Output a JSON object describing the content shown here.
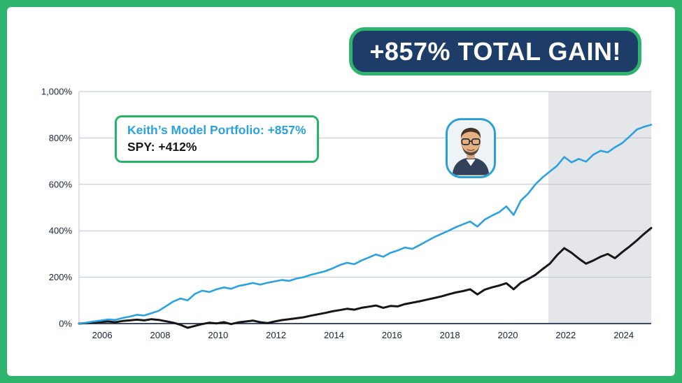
{
  "badge": {
    "label": "+857% TOTAL GAIN!"
  },
  "legend": {
    "model_label": "Keith’s Model Portfolio: +857%",
    "spy_label": "SPY: +412%"
  },
  "colors": {
    "frame_green": "#2fb46d",
    "badge_navy": "#1e3c68",
    "badge_text": "#ffffff",
    "model_line_blue": "#2ba2e0",
    "spy_line_black": "#161616",
    "legend_border_green": "#27b468",
    "avatar_border_blue": "#2aa0d8",
    "grid": "#b9c3d6",
    "axis": "#24304a",
    "shaded_region": "#e4e6e9",
    "tick_text": "#1a2433"
  },
  "chart_data": {
    "type": "line",
    "title": "",
    "xlabel": "",
    "ylabel": "",
    "grid": true,
    "legend_position": "top-left-inside",
    "x_start": 2005.2,
    "x_step": 0.25,
    "xlim": [
      2005.2,
      2024.95
    ],
    "ylim": [
      0,
      1000
    ],
    "y_ticks": [
      {
        "value": 0,
        "label": "0%"
      },
      {
        "value": 200,
        "label": "200%"
      },
      {
        "value": 400,
        "label": "400%"
      },
      {
        "value": 600,
        "label": "600%"
      },
      {
        "value": 800,
        "label": "800%"
      },
      {
        "value": 1000,
        "label": "1,000%"
      }
    ],
    "x_ticks": [
      {
        "value": 2006,
        "label": "2006"
      },
      {
        "value": 2008,
        "label": "2008"
      },
      {
        "value": 2010,
        "label": "2010"
      },
      {
        "value": 2012,
        "label": "2012"
      },
      {
        "value": 2014,
        "label": "2014"
      },
      {
        "value": 2016,
        "label": "2016"
      },
      {
        "value": 2018,
        "label": "2018"
      },
      {
        "value": 2020,
        "label": "2020"
      },
      {
        "value": 2022,
        "label": "2022"
      },
      {
        "value": 2024,
        "label": "2024"
      }
    ],
    "shaded_region": {
      "x_start": 2021.4,
      "x_end": 2024.95
    },
    "series": [
      {
        "name": "Keith's Model Portfolio",
        "final_value_pct": 857,
        "color": "#2ba2e0",
        "width": 2.6,
        "values": [
          0,
          4,
          9,
          13,
          18,
          16,
          24,
          30,
          38,
          35,
          45,
          55,
          75,
          95,
          108,
          100,
          128,
          142,
          136,
          148,
          156,
          150,
          162,
          168,
          175,
          168,
          176,
          182,
          188,
          184,
          194,
          200,
          210,
          218,
          226,
          238,
          252,
          262,
          256,
          272,
          285,
          298,
          288,
          305,
          315,
          328,
          322,
          338,
          355,
          372,
          386,
          400,
          415,
          428,
          440,
          418,
          448,
          465,
          480,
          505,
          468,
          530,
          560,
          600,
          630,
          655,
          680,
          718,
          695,
          710,
          698,
          728,
          745,
          738,
          760,
          778,
          806,
          836,
          848,
          857
        ]
      },
      {
        "name": "SPY",
        "final_value_pct": 412,
        "color": "#161616",
        "width": 3,
        "values": [
          0,
          2,
          5,
          7,
          9,
          6,
          11,
          14,
          17,
          14,
          19,
          16,
          10,
          4,
          -5,
          -18,
          -10,
          -2,
          4,
          1,
          6,
          -2,
          5,
          9,
          13,
          6,
          2,
          9,
          15,
          19,
          23,
          27,
          34,
          40,
          46,
          53,
          58,
          64,
          60,
          68,
          73,
          78,
          68,
          76,
          74,
          84,
          90,
          96,
          103,
          110,
          117,
          126,
          134,
          140,
          148,
          126,
          146,
          156,
          164,
          174,
          148,
          176,
          192,
          210,
          235,
          258,
          295,
          325,
          305,
          280,
          258,
          272,
          288,
          300,
          282,
          308,
          332,
          358,
          386,
          412
        ]
      }
    ]
  }
}
